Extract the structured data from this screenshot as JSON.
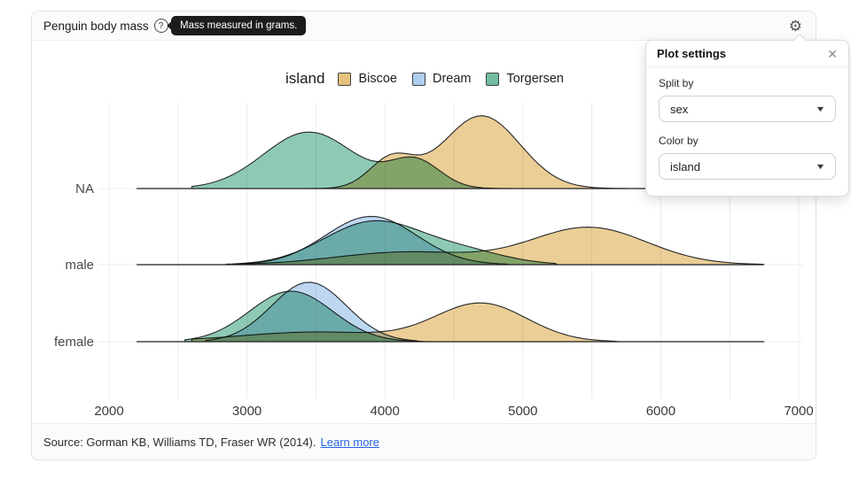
{
  "header": {
    "title": "Penguin body mass",
    "help_icon_glyph": "?",
    "tooltip_text": "Mass measured in grams."
  },
  "settings_panel": {
    "title": "Plot settings",
    "fields": [
      {
        "label": "Split by",
        "value": "sex"
      },
      {
        "label": "Color by",
        "value": "island"
      }
    ]
  },
  "footer": {
    "source_text": "Source: Gorman KB, Williams TD, Fraser WR (2014).",
    "link_label": "Learn more"
  },
  "chart_data": {
    "type": "area",
    "subtype": "ridgeline-density",
    "x_unit": "grams",
    "x_ticks_labeled": [
      2000,
      3000,
      4000,
      5000,
      6000,
      7000
    ],
    "x_gridline_step": 500,
    "x_range": [
      2000,
      7000
    ],
    "rows": [
      "NA",
      "male",
      "female"
    ],
    "baseline_range": [
      2200,
      6750
    ],
    "legend": {
      "title": "island",
      "entries": [
        {
          "label": "Biscoe",
          "color": "#e6c27c"
        },
        {
          "label": "Dream",
          "color": "#aecdee"
        },
        {
          "label": "Torgersen",
          "color": "#72bda0"
        }
      ]
    },
    "series": [
      {
        "row": "NA",
        "island": "Biscoe",
        "color": "#e6c27c",
        "range": [
          3450,
          5750
        ],
        "components": [
          {
            "mean": 4050,
            "sd": 160,
            "amp": 0.4
          },
          {
            "mean": 4700,
            "sd": 280,
            "amp": 0.98
          }
        ]
      },
      {
        "row": "NA",
        "island": "Torgersen",
        "color": "#72bda0",
        "range": [
          2600,
          4950
        ],
        "components": [
          {
            "mean": 3450,
            "sd": 330,
            "amp": 0.76
          },
          {
            "mean": 4220,
            "sd": 180,
            "amp": 0.37
          }
        ]
      },
      {
        "row": "male",
        "island": "Biscoe",
        "color": "#e6c27c",
        "range": [
          3000,
          6750
        ],
        "components": [
          {
            "mean": 4150,
            "sd": 500,
            "amp": 0.17
          },
          {
            "mean": 5480,
            "sd": 420,
            "amp": 0.5
          }
        ]
      },
      {
        "row": "male",
        "island": "Dream",
        "color": "#aecdee",
        "range": [
          2900,
          4900
        ],
        "components": [
          {
            "mean": 3900,
            "sd": 330,
            "amp": 0.65
          }
        ]
      },
      {
        "row": "male",
        "island": "Torgersen",
        "color": "#72bda0",
        "range": [
          2850,
          5250
        ],
        "components": [
          {
            "mean": 3920,
            "sd": 360,
            "amp": 0.58
          },
          {
            "mean": 4600,
            "sd": 300,
            "amp": 0.15
          }
        ]
      },
      {
        "row": "female",
        "island": "Biscoe",
        "color": "#e6c27c",
        "range": [
          2600,
          5700
        ],
        "components": [
          {
            "mean": 3500,
            "sd": 550,
            "amp": 0.13
          },
          {
            "mean": 4700,
            "sd": 330,
            "amp": 0.51
          }
        ]
      },
      {
        "row": "female",
        "island": "Dream",
        "color": "#aecdee",
        "range": [
          2700,
          4250
        ],
        "components": [
          {
            "mean": 3450,
            "sd": 270,
            "amp": 0.8
          }
        ]
      },
      {
        "row": "female",
        "island": "Torgersen",
        "color": "#72bda0",
        "range": [
          2550,
          4300
        ],
        "components": [
          {
            "mean": 3320,
            "sd": 300,
            "amp": 0.68
          }
        ]
      }
    ]
  }
}
